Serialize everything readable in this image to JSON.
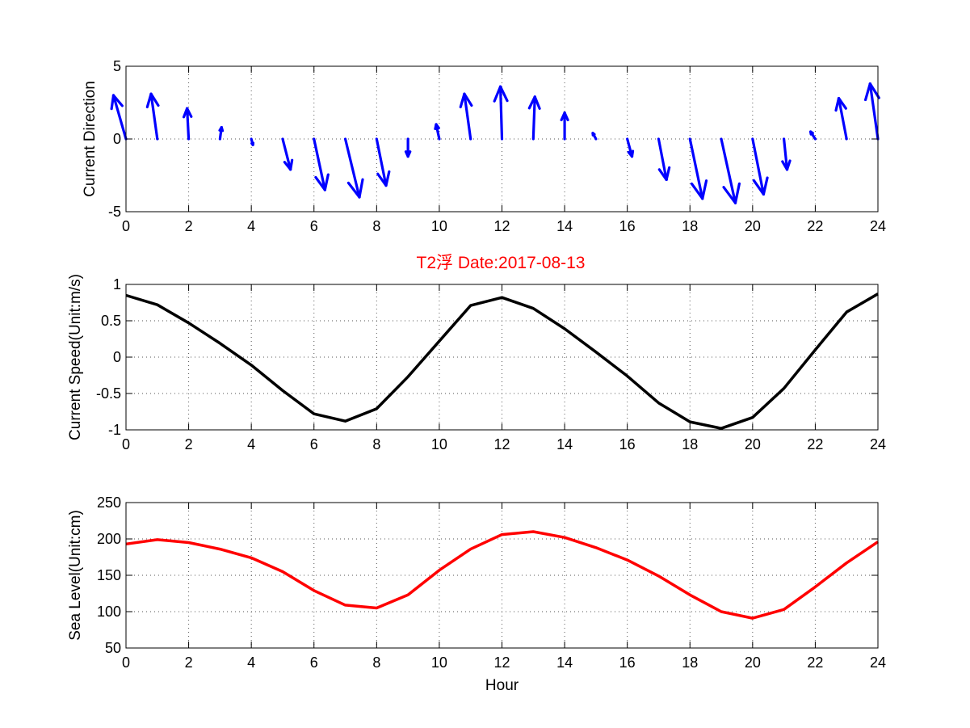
{
  "figure": {
    "title": "T2浮    Date:2017-08-13",
    "title_color": "#ff0000"
  },
  "chart_data": [
    {
      "type": "quiver",
      "ylabel": "Current Direction",
      "xlabel": "",
      "xlim": [
        0,
        24
      ],
      "ylim": [
        -5,
        5
      ],
      "xticks": [
        0,
        2,
        4,
        6,
        8,
        10,
        12,
        14,
        16,
        18,
        20,
        22,
        24
      ],
      "yticks": [
        -5,
        0,
        5
      ],
      "grid": true,
      "color": "#0000ff",
      "x": [
        0,
        1,
        2,
        3,
        4,
        5,
        6,
        7,
        8,
        9,
        10,
        11,
        12,
        13,
        14,
        15,
        16,
        17,
        18,
        19,
        20,
        21,
        22,
        23,
        24
      ],
      "u": [
        -0.4,
        -0.2,
        -0.05,
        0.05,
        0.05,
        0.25,
        0.35,
        0.45,
        0.3,
        0.0,
        -0.1,
        -0.2,
        -0.05,
        0.05,
        0.0,
        -0.1,
        0.15,
        0.25,
        0.4,
        0.45,
        0.35,
        0.1,
        -0.15,
        -0.25,
        -0.25
      ],
      "v": [
        3.0,
        3.1,
        2.1,
        0.8,
        -0.4,
        -2.1,
        -3.5,
        -4.0,
        -3.2,
        -1.2,
        1.0,
        3.1,
        3.6,
        2.9,
        1.8,
        0.4,
        -1.2,
        -2.8,
        -4.1,
        -4.4,
        -3.8,
        -2.1,
        0.5,
        2.8,
        3.8
      ]
    },
    {
      "type": "line",
      "ylabel": "Current Speed(Unit:m/s)",
      "xlabel": "",
      "xlim": [
        0,
        24
      ],
      "ylim": [
        -1,
        1
      ],
      "xticks": [
        0,
        2,
        4,
        6,
        8,
        10,
        12,
        14,
        16,
        18,
        20,
        22,
        24
      ],
      "yticks": [
        -1,
        -0.5,
        0,
        0.5,
        1
      ],
      "yticklabels": [
        "-1",
        "-0.5",
        "0",
        "0.5",
        "1"
      ],
      "grid": true,
      "series": [
        {
          "name": "Current Speed",
          "color": "#000000",
          "x": [
            0,
            1,
            2,
            3,
            4,
            5,
            6,
            7,
            8,
            9,
            10,
            11,
            12,
            13,
            14,
            15,
            16,
            17,
            18,
            19,
            20,
            21,
            22,
            23,
            24
          ],
          "values": [
            0.85,
            0.72,
            0.47,
            0.19,
            -0.11,
            -0.46,
            -0.78,
            -0.88,
            -0.71,
            -0.27,
            0.22,
            0.71,
            0.82,
            0.67,
            0.39,
            0.07,
            -0.26,
            -0.63,
            -0.89,
            -0.98,
            -0.83,
            -0.43,
            0.1,
            0.62,
            0.87
          ]
        }
      ]
    },
    {
      "type": "line",
      "ylabel": "Sea Level(Unit:cm)",
      "xlabel": "Hour",
      "xlim": [
        0,
        24
      ],
      "ylim": [
        50,
        250
      ],
      "xticks": [
        0,
        2,
        4,
        6,
        8,
        10,
        12,
        14,
        16,
        18,
        20,
        22,
        24
      ],
      "yticks": [
        50,
        100,
        150,
        200,
        250
      ],
      "grid": true,
      "series": [
        {
          "name": "Sea Level",
          "color": "#ff0000",
          "x": [
            0,
            1,
            2,
            3,
            4,
            5,
            6,
            7,
            8,
            9,
            10,
            11,
            12,
            13,
            14,
            15,
            16,
            17,
            18,
            19,
            20,
            21,
            22,
            23,
            24
          ],
          "values": [
            193,
            199,
            195,
            186,
            174,
            155,
            129,
            109,
            105,
            123,
            157,
            186,
            206,
            210,
            202,
            188,
            171,
            149,
            123,
            100,
            91,
            103,
            134,
            167,
            196
          ]
        }
      ]
    }
  ]
}
